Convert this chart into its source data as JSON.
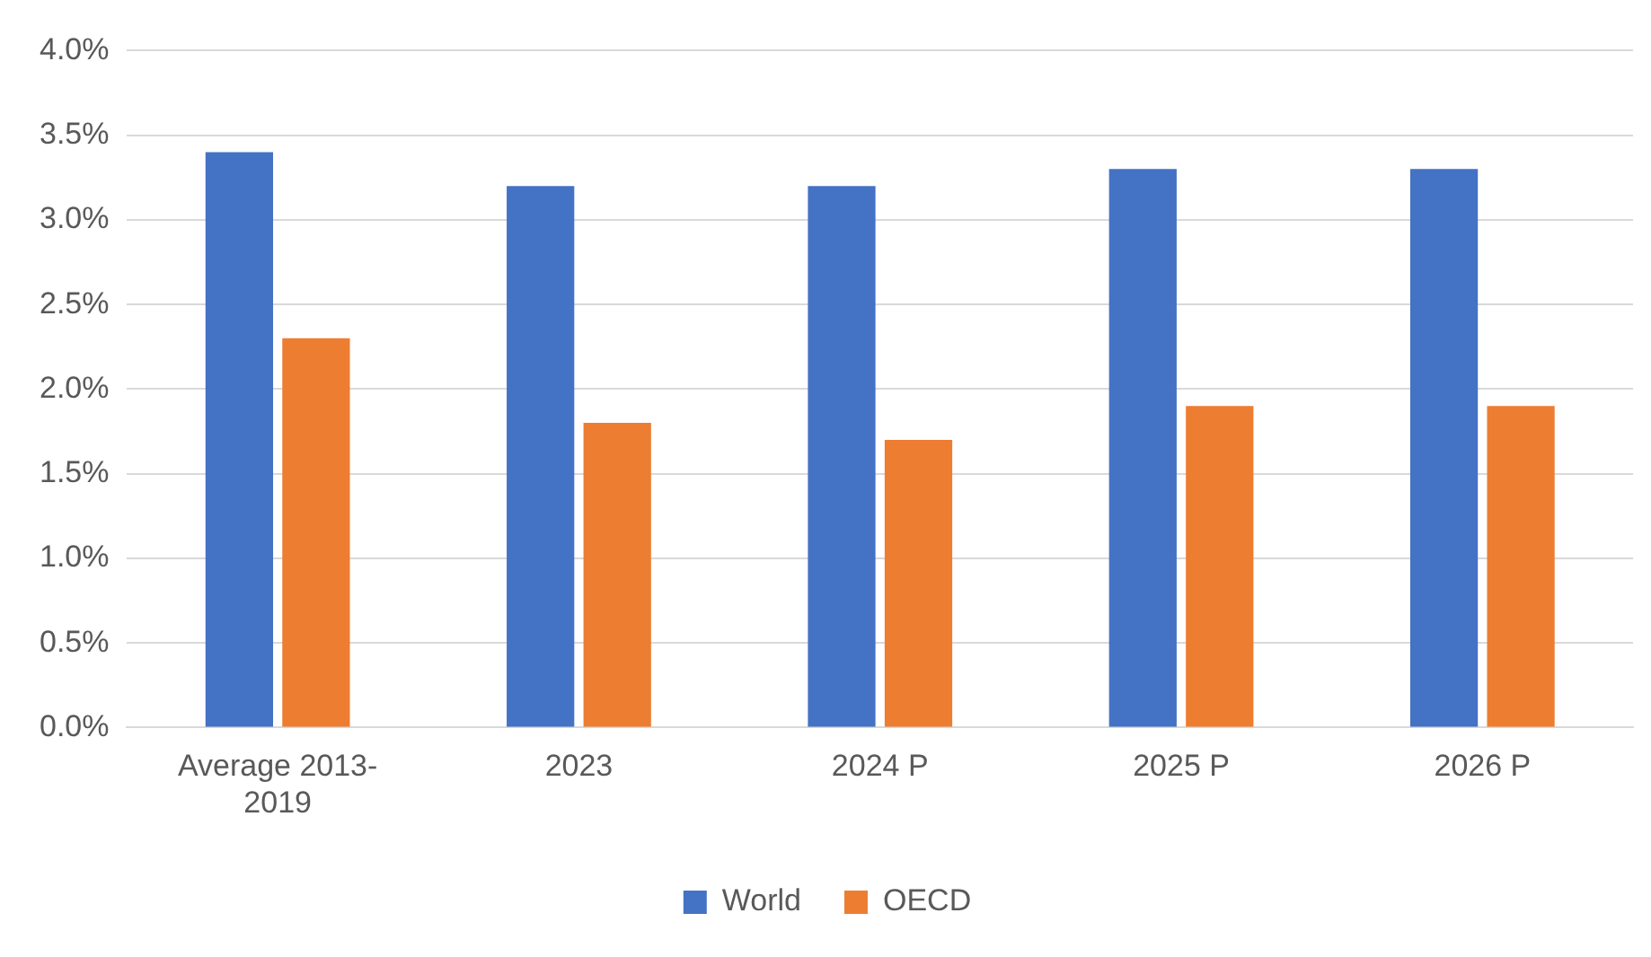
{
  "chart_data": {
    "type": "bar",
    "categories": [
      "Average 2013-2019",
      "2023",
      "2024 P",
      "2025 P",
      "2026 P"
    ],
    "series": [
      {
        "name": "World",
        "color": "#4472c4",
        "values": [
          3.4,
          3.2,
          3.2,
          3.3,
          3.3
        ]
      },
      {
        "name": "OECD",
        "color": "#ed7d31",
        "values": [
          2.3,
          1.8,
          1.7,
          1.9,
          1.9
        ]
      }
    ],
    "ylim": [
      0,
      4
    ],
    "yticks": [
      {
        "value": 0,
        "label": "0.0%"
      },
      {
        "value": 0.5,
        "label": "0.5%"
      },
      {
        "value": 1,
        "label": "1.0%"
      },
      {
        "value": 1.5,
        "label": "1.5%"
      },
      {
        "value": 2,
        "label": "2.0%"
      },
      {
        "value": 2.5,
        "label": "2.5%"
      },
      {
        "value": 3,
        "label": "3.0%"
      },
      {
        "value": 3.5,
        "label": "3.5%"
      },
      {
        "value": 4,
        "label": "4.0%"
      }
    ],
    "grid": "y",
    "legend": "bottom"
  }
}
